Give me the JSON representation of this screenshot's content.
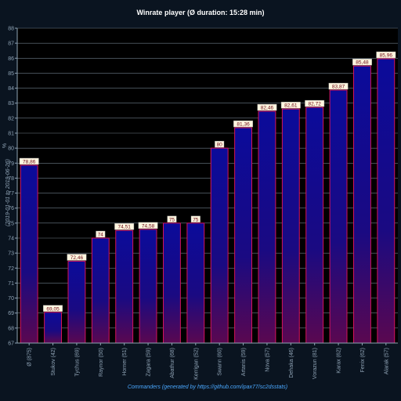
{
  "chart_data": {
    "type": "bar",
    "title": "Winrate player (Ø duration: 15:28 min)",
    "ylabel": "%",
    "ylabel_secondary": "(2019-01-01 to 2019-06-26)",
    "xlabel": "Commanders (generated by https://github.com/ipax77/sc2dsstats)",
    "ylim": [
      67,
      88
    ],
    "yticks": [
      67,
      68,
      69,
      70,
      71,
      72,
      73,
      74,
      75,
      76,
      77,
      78,
      79,
      80,
      81,
      82,
      83,
      84,
      85,
      86,
      87,
      88
    ],
    "categories": [
      "Ø (875)",
      "Stukov (42)",
      "Tychus (69)",
      "Raynor (50)",
      "Horner (51)",
      "Zagara (59)",
      "Abathur (68)",
      "Kerrigan (52)",
      "Swann (60)",
      "Artanis (59)",
      "Nova (57)",
      "Dehaka (46)",
      "Vorazun (81)",
      "Karax (62)",
      "Fenix (62)",
      "Alarak (57)"
    ],
    "values": [
      78.86,
      69.05,
      72.46,
      74,
      74.51,
      74.58,
      75,
      75,
      80,
      81.36,
      82.46,
      82.61,
      82.72,
      83.87,
      85.48,
      85.96
    ],
    "value_labels": [
      "78,86",
      "69,05",
      "72,46",
      "74",
      "74,51",
      "74,58",
      "75",
      "75",
      "80",
      "81,36",
      "82,46",
      "82,61",
      "82,72",
      "83,87",
      "85,48",
      "85,96"
    ],
    "grid": true,
    "colors": {
      "background": "#0a1420",
      "plot_background": "#000000",
      "grid": "#6e7c8a",
      "axis": "#8fa3b5",
      "text": "#ffffff",
      "tick_text": "#8fa3b5",
      "xlabel_text": "#4aa8ff",
      "bar_top": "#0b0b9a",
      "bar_bottom": "#5a0850",
      "bar_border": "#d4145a",
      "label_bg": "#fff6e0",
      "label_text": "#6a0a14"
    }
  }
}
